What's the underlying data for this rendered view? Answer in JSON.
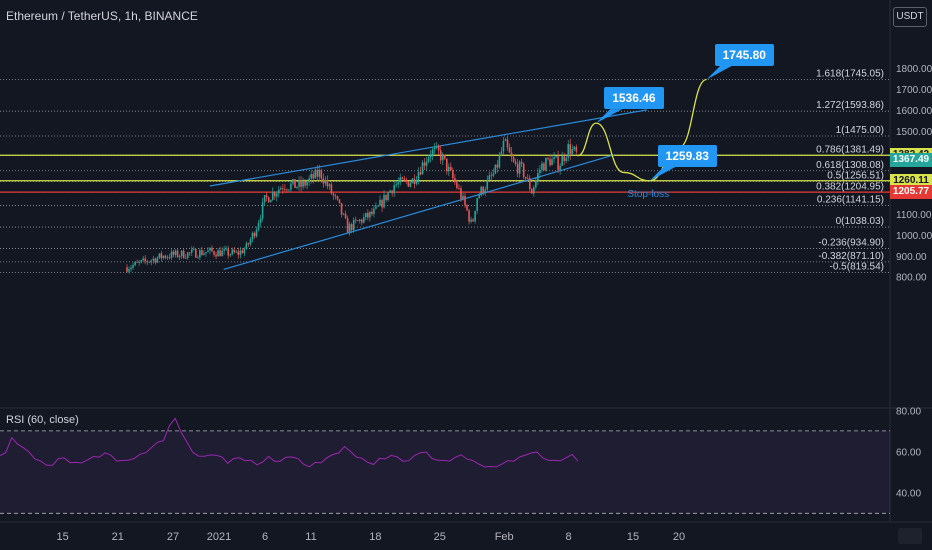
{
  "header": {
    "title": "Ethereum / TetherUS, 1h, BINANCE",
    "currency": "USDT"
  },
  "colors": {
    "background": "#131722",
    "fib": "#d1d4dc",
    "channel": "#2a8bdc",
    "projection": "#d8e24a",
    "stop": "#e53935",
    "rsi": "#9c27b0",
    "candle_up": "#26a69a",
    "candle_down": "#ef5350"
  },
  "chart_data": {
    "type": "line",
    "price_axis": {
      "ticks": [
        "1800.00",
        "1700.00",
        "1600.00",
        "1500.00",
        "1100.00",
        "1000.00",
        "900.00",
        "800.00"
      ]
    },
    "price_ticks_values": [
      1800,
      1700,
      1600,
      1500,
      1100,
      1000,
      900,
      800
    ],
    "price_tag_values": [
      1382.42,
      1367.49,
      1260.11,
      1205.77
    ],
    "x_axis": {
      "labels": [
        {
          "text": "15",
          "day": -17
        },
        {
          "text": "21",
          "day": -11
        },
        {
          "text": "27",
          "day": -5
        },
        {
          "text": "2021",
          "day": 0
        },
        {
          "text": "6",
          "day": 5
        },
        {
          "text": "11",
          "day": 10
        },
        {
          "text": "18",
          "day": 17
        },
        {
          "text": "25",
          "day": 24
        },
        {
          "text": "Feb",
          "day": 31
        },
        {
          "text": "8",
          "day": 38
        },
        {
          "text": "15",
          "day": 45
        },
        {
          "text": "20",
          "day": 50
        }
      ]
    },
    "fib_levels": [
      {
        "label": "1.618(1745.05)",
        "value": 1745.05
      },
      {
        "label": "1.272(1593.86)",
        "value": 1593.86
      },
      {
        "label": "1(1475.00)",
        "value": 1475.0
      },
      {
        "label": "0.786(1381.49)",
        "value": 1381.49
      },
      {
        "label": "0.618(1308.08)",
        "value": 1308.08
      },
      {
        "label": "0.5(1256.51)",
        "value": 1256.51
      },
      {
        "label": "0.382(1204.95)",
        "value": 1204.95
      },
      {
        "label": "0.236(1141.15)",
        "value": 1141.15
      },
      {
        "label": "0(1038.03)",
        "value": 1038.03
      },
      {
        "label": "-0.236(934.90)",
        "value": 934.9
      },
      {
        "label": "-0.382(871.10)",
        "value": 871.1
      },
      {
        "label": "-0.5(819.54)",
        "value": 819.54
      }
    ],
    "horizontal_lines": [
      {
        "value": 1382.42,
        "color": "#d8e24a"
      },
      {
        "value": 1260.11,
        "color": "#d8e24a"
      },
      {
        "value": 1205.77,
        "color": "#e53935"
      }
    ],
    "channel": {
      "upper": [
        {
          "day": -1,
          "price": 1235
        },
        {
          "day": 46.5,
          "price": 1600
        }
      ],
      "lower": [
        {
          "day": 0.5,
          "price": 835
        },
        {
          "day": 43,
          "price": 1385
        }
      ]
    },
    "price_path": [
      {
        "day": -10,
        "price": 845
      },
      {
        "day": -6,
        "price": 900
      },
      {
        "day": -1,
        "price": 920
      },
      {
        "day": 2,
        "price": 910
      },
      {
        "day": 3,
        "price": 940
      },
      {
        "day": 4,
        "price": 1030
      },
      {
        "day": 5,
        "price": 1170
      },
      {
        "day": 7,
        "price": 1240
      },
      {
        "day": 9,
        "price": 1235
      },
      {
        "day": 11,
        "price": 1300
      },
      {
        "day": 13,
        "price": 1140
      },
      {
        "day": 14,
        "price": 1030
      },
      {
        "day": 15,
        "price": 1060
      },
      {
        "day": 17,
        "price": 1110
      },
      {
        "day": 19,
        "price": 1240
      },
      {
        "day": 21,
        "price": 1260
      },
      {
        "day": 23,
        "price": 1400
      },
      {
        "day": 24,
        "price": 1390
      },
      {
        "day": 26,
        "price": 1220
      },
      {
        "day": 27,
        "price": 1110
      },
      {
        "day": 27.5,
        "price": 1040
      },
      {
        "day": 28,
        "price": 1180
      },
      {
        "day": 30,
        "price": 1300
      },
      {
        "day": 31,
        "price": 1440
      },
      {
        "day": 32,
        "price": 1340
      },
      {
        "day": 33,
        "price": 1310
      },
      {
        "day": 34,
        "price": 1210
      },
      {
        "day": 35,
        "price": 1330
      },
      {
        "day": 36,
        "price": 1360
      },
      {
        "day": 37,
        "price": 1340
      },
      {
        "day": 38,
        "price": 1420
      },
      {
        "day": 39,
        "price": 1380
      }
    ],
    "projection_path": [
      {
        "day": 39,
        "price": 1380
      },
      {
        "day": 41,
        "price": 1536.46
      },
      {
        "day": 44,
        "price": 1300
      },
      {
        "day": 46.8,
        "price": 1259.83
      },
      {
        "day": 50,
        "price": 1420
      },
      {
        "day": 53,
        "price": 1745.8
      }
    ],
    "callouts": [
      {
        "text": "1536.46",
        "day": 41,
        "price": 1536.46
      },
      {
        "text": "1259.83",
        "day": 46.8,
        "price": 1259.83
      },
      {
        "text": "1745.80",
        "day": 53,
        "price": 1745.8
      }
    ],
    "annotations": [
      {
        "text": "Stop-loss",
        "day": 47,
        "price": 1240
      }
    ],
    "rsi": {
      "label": "RSI (60, close)",
      "ticks": [
        "80.00",
        "60.00",
        "40.00"
      ],
      "tick_values": [
        80,
        60,
        40
      ],
      "bands": [
        70,
        30
      ],
      "values": [
        58,
        60,
        66,
        64,
        62,
        59,
        57,
        55,
        53,
        54,
        56,
        57,
        55,
        54,
        55,
        56,
        57,
        58,
        59,
        58,
        56,
        55,
        56,
        57,
        58,
        60,
        62,
        64,
        66,
        72,
        76,
        70,
        64,
        60,
        58,
        57,
        59,
        58,
        57,
        55,
        56,
        57,
        56,
        55,
        54,
        55,
        57,
        56,
        55,
        57,
        58,
        56,
        54,
        53,
        54,
        55,
        57,
        58,
        60,
        62,
        60,
        58,
        56,
        55,
        54,
        56,
        57,
        58,
        57,
        56,
        55,
        58,
        60,
        59,
        57,
        56,
        55,
        56,
        57,
        58,
        57,
        55,
        54,
        53,
        52,
        53,
        54,
        55,
        56,
        57,
        58,
        60,
        59,
        57,
        56,
        55,
        56,
        57,
        58,
        56
      ]
    },
    "xlim": [
      -18,
      57
    ],
    "ylim": [
      764,
      1880
    ]
  }
}
